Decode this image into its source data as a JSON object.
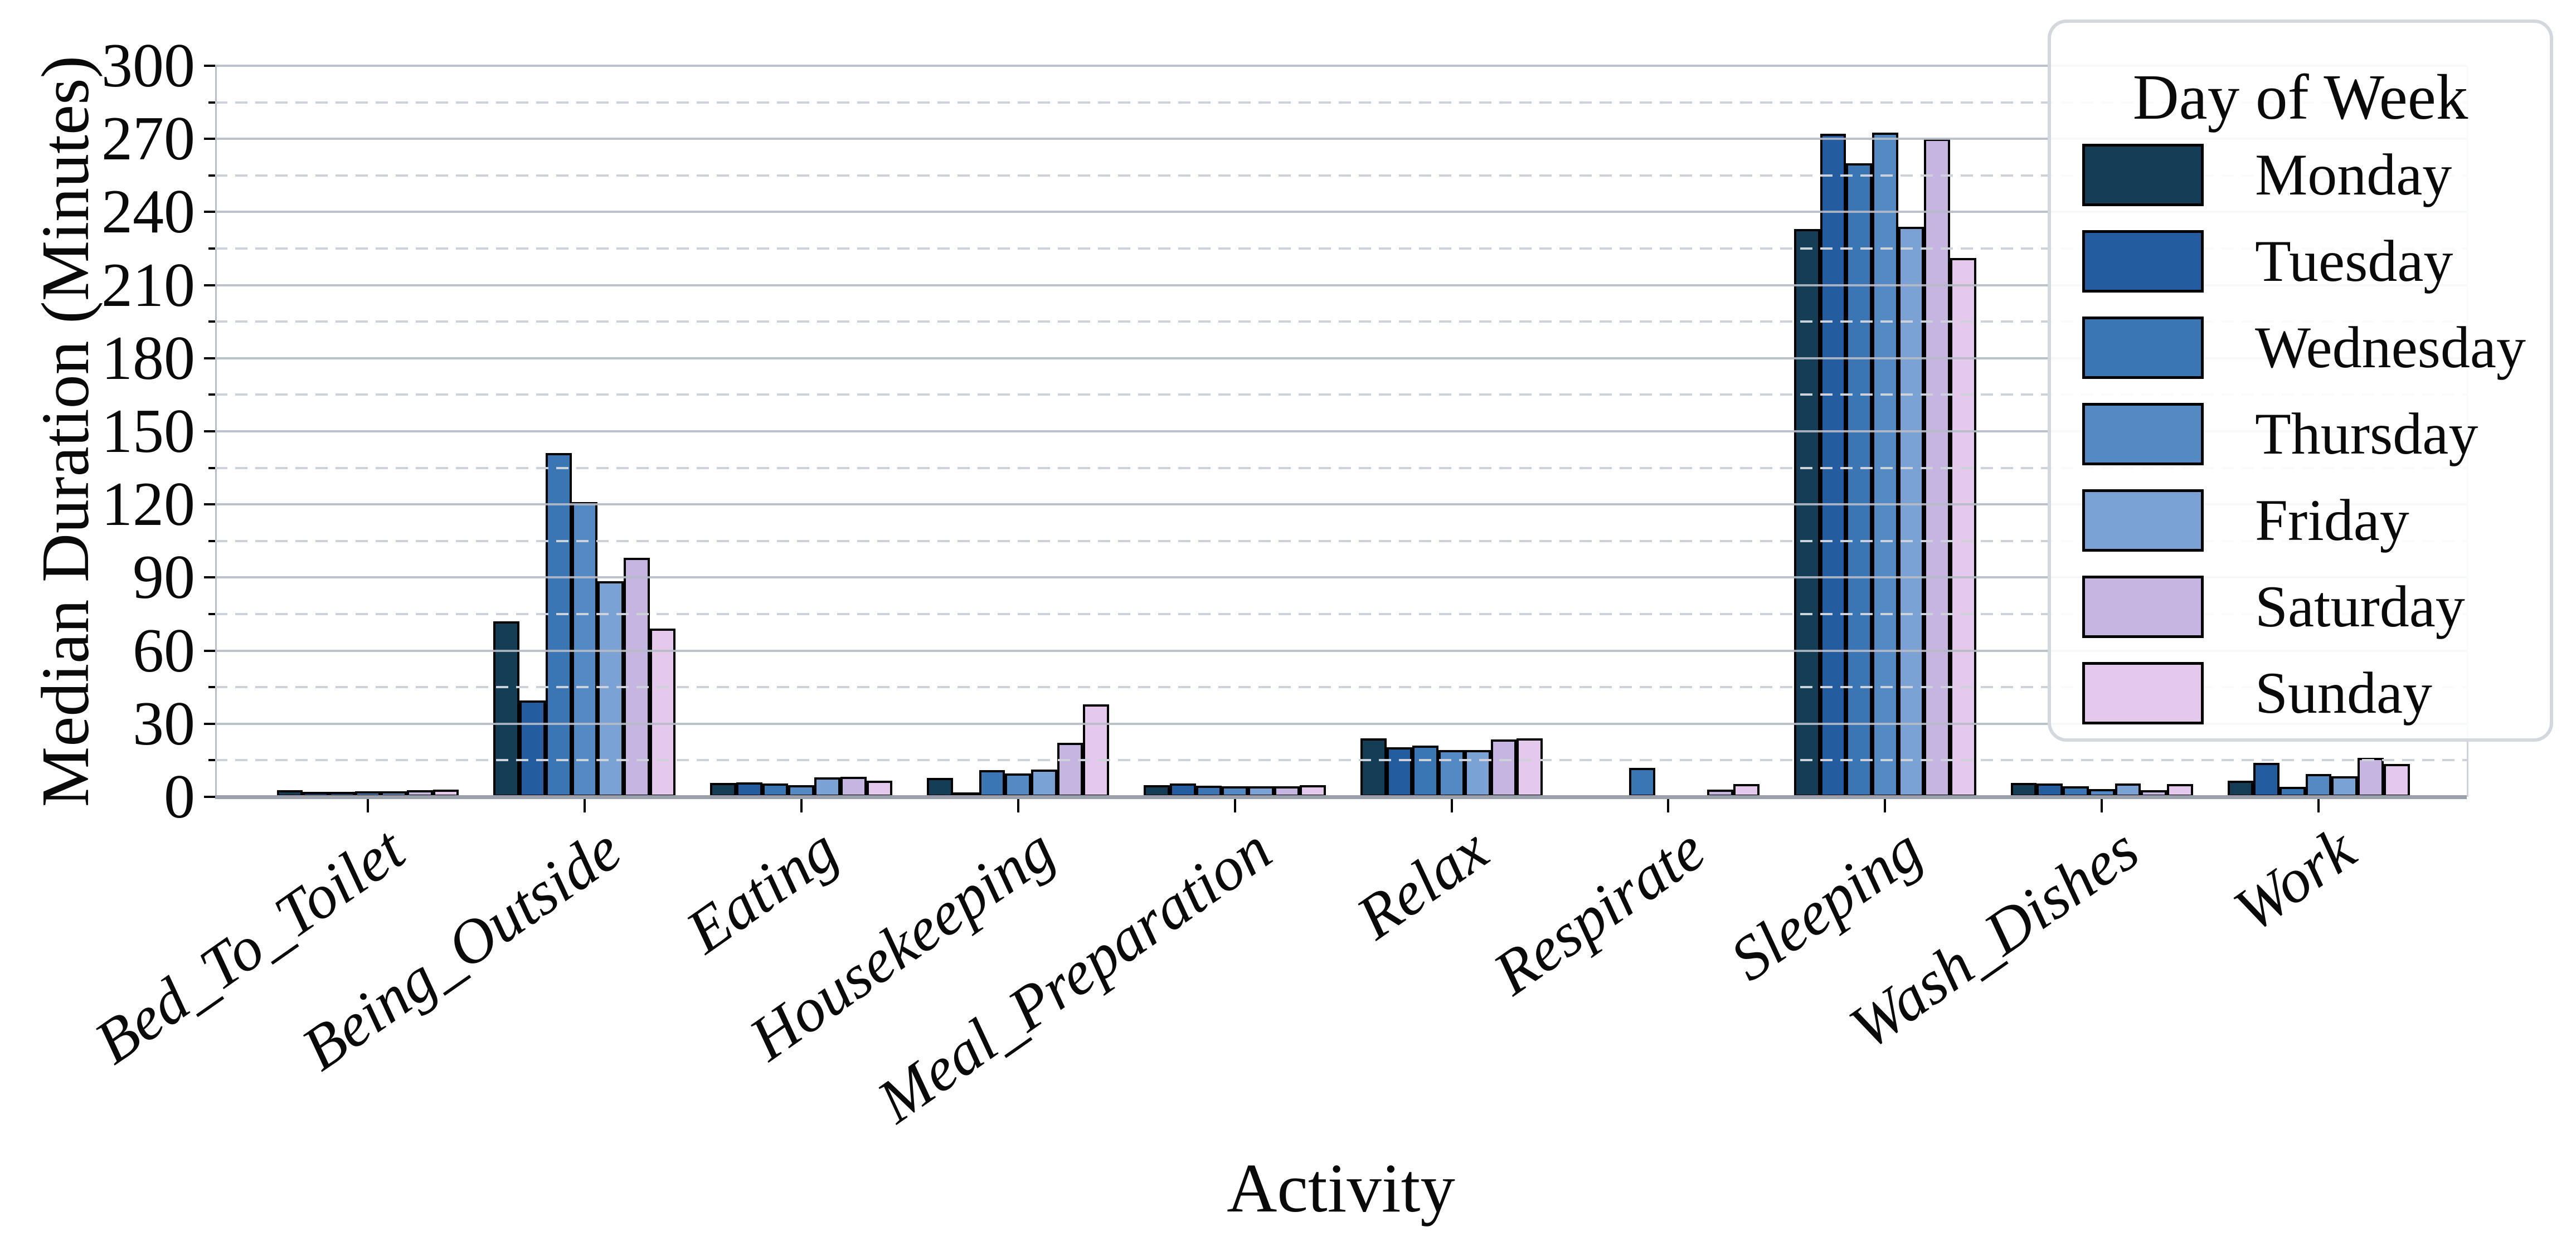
{
  "chart_data": {
    "type": "bar",
    "title": "",
    "xlabel": "Activity",
    "ylabel": "Median Duration (Minutes)",
    "categories": [
      "Bed_To_Toilet",
      "Being_Outside",
      "Eating",
      "Housekeeping",
      "Meal_Preparation",
      "Relax",
      "Respirate",
      "Sleeping",
      "Wash_Dishes",
      "Work"
    ],
    "series": [
      {
        "name": "Monday",
        "color": "#143e55",
        "values": [
          2.7,
          72,
          5.7,
          7.8,
          4.9,
          24,
          0,
          233,
          5.7,
          6.6
        ]
      },
      {
        "name": "Tuesday",
        "color": "#235d9f",
        "values": [
          2,
          39.5,
          5.9,
          1.8,
          5.5,
          20.3,
          0,
          272,
          5.5,
          14
        ]
      },
      {
        "name": "Wednesday",
        "color": "#3b76b4",
        "values": [
          2,
          141,
          5.5,
          11,
          4.6,
          21,
          12,
          260,
          4.3,
          4.1
        ]
      },
      {
        "name": "Thursday",
        "color": "#548ac3",
        "values": [
          2.3,
          121,
          4.8,
          9.5,
          4.3,
          19.2,
          0,
          272.5,
          3.3,
          9.3
        ]
      },
      {
        "name": "Friday",
        "color": "#7aa2d5",
        "values": [
          2.2,
          88.5,
          8,
          11.3,
          4.3,
          19.2,
          0,
          234,
          5.5,
          8.5
        ]
      },
      {
        "name": "Saturday",
        "color": "#c6b4e1",
        "values": [
          2.7,
          98,
          8.2,
          22.2,
          4.3,
          23.5,
          3,
          270,
          2.7,
          16
        ]
      },
      {
        "name": "Sunday",
        "color": "#e5c9ec",
        "values": [
          2.9,
          69,
          6.7,
          38,
          4.9,
          24,
          5.3,
          221,
          5.3,
          13.5
        ]
      }
    ],
    "ylim": [
      0,
      300
    ],
    "yticks_major": [
      0,
      30,
      60,
      90,
      120,
      150,
      180,
      210,
      240,
      270,
      300
    ],
    "ytick_labels": [
      "0",
      "30",
      "60",
      "90",
      "120",
      "150",
      "180",
      "210",
      "240",
      "270",
      "300"
    ],
    "yticks_minor": [
      15,
      45,
      75,
      105,
      135,
      165,
      195,
      225,
      255,
      285
    ],
    "grid": "horizontal; solid lines every 30, dashed lines every 15, drawn over bars",
    "legend": {
      "title": "Day of Week",
      "position": "upper right"
    }
  },
  "colors": {
    "background": "#ffffff",
    "grid_major": "#b5bbc7",
    "grid_minor": "#ccd1da",
    "baseline": "#9aa1ac",
    "spine": "#b9bfca",
    "bar_edge": "#000000",
    "legend_border": "#d3d7de",
    "text": "#0a0a0a"
  }
}
